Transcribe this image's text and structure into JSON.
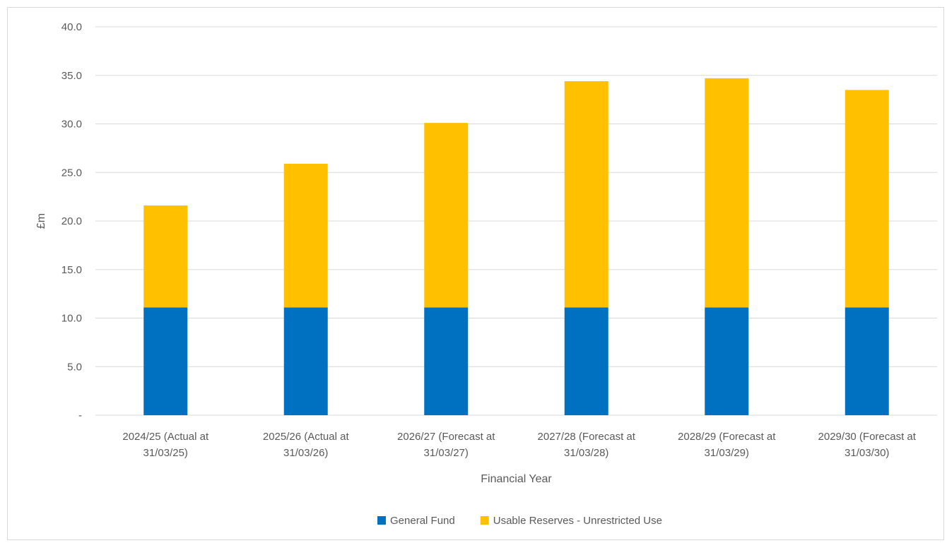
{
  "chart_data": {
    "type": "bar",
    "stacked": true,
    "title": "",
    "xlabel": "Financial Year",
    "ylabel": "£m",
    "ylim": [
      0,
      40
    ],
    "yticks": [
      0,
      5,
      10,
      15,
      20,
      25,
      30,
      35,
      40
    ],
    "ytick_labels": [
      "-",
      "5.0",
      "10.0",
      "15.0",
      "20.0",
      "25.0",
      "30.0",
      "35.0",
      "40.0"
    ],
    "grid": true,
    "legend_position": "bottom",
    "categories": [
      [
        "2024/25 (Actual at",
        "31/03/25)"
      ],
      [
        "2025/26 (Actual at",
        "31/03/26)"
      ],
      [
        "2026/27 (Forecast at",
        "31/03/27)"
      ],
      [
        "2027/28 (Forecast at",
        "31/03/28)"
      ],
      [
        "2028/29 (Forecast at",
        "31/03/29)"
      ],
      [
        "2029/30 (Forecast at",
        "31/03/30)"
      ]
    ],
    "series": [
      {
        "name": "General Fund",
        "color": "#0070C0",
        "values": [
          11.1,
          11.1,
          11.1,
          11.1,
          11.1,
          11.1
        ]
      },
      {
        "name": "Usable Reserves - Unrestricted Use",
        "color": "#FFC000",
        "values": [
          10.5,
          14.8,
          19.0,
          23.3,
          23.6,
          22.4
        ]
      }
    ]
  }
}
